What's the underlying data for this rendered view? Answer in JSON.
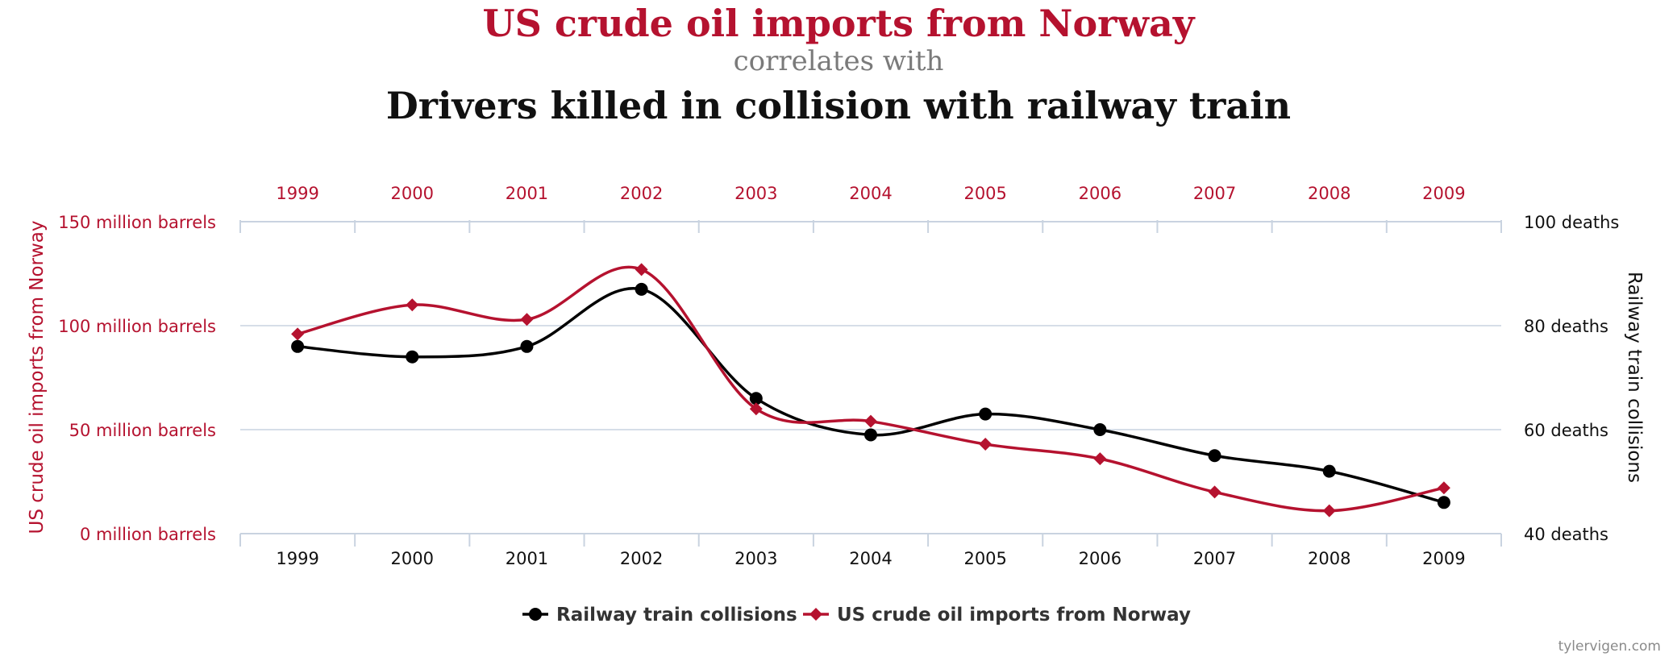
{
  "header": {
    "title_primary": "US crude oil imports from Norway",
    "connector": "correlates with",
    "title_secondary": "Drivers killed in collision with railway train"
  },
  "credit": "tylervigen.com",
  "colors": {
    "oil": "#b5122f",
    "rail": "#000000",
    "grid": "#c9d3e0"
  },
  "chart_data": {
    "type": "line",
    "x": [
      "1999",
      "2000",
      "2001",
      "2002",
      "2003",
      "2004",
      "2005",
      "2006",
      "2007",
      "2008",
      "2009"
    ],
    "y_left": {
      "label": "US crude oil imports from Norway",
      "unit_suffix": " million barrels",
      "range": [
        0,
        150
      ],
      "ticks": [
        0,
        50,
        100,
        150
      ]
    },
    "y_right": {
      "label": "Railway train collisions",
      "unit_suffix": " deaths",
      "range": [
        40,
        100
      ],
      "ticks": [
        40,
        60,
        80,
        100
      ]
    },
    "series": [
      {
        "name": "Railway train collisions",
        "axis": "right",
        "marker": "circle",
        "values": [
          76,
          74,
          76,
          87,
          66,
          59,
          63,
          60,
          55,
          52,
          46
        ]
      },
      {
        "name": "US crude oil imports from Norway",
        "axis": "left",
        "marker": "diamond",
        "values": [
          96,
          110,
          103,
          127,
          60,
          54,
          43,
          36,
          20,
          11,
          22
        ]
      }
    ],
    "legend_position": "bottom-center",
    "grid": true
  }
}
